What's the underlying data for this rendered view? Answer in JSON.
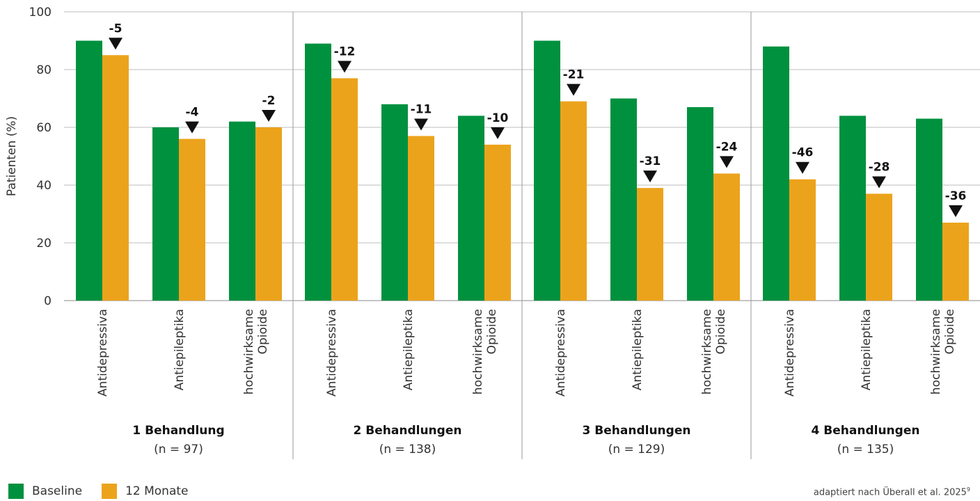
{
  "chart_data": {
    "type": "bar",
    "ylabel": "Patienten (%)",
    "ylim": [
      0,
      100
    ],
    "yticks": [
      0,
      20,
      40,
      60,
      80,
      100
    ],
    "grid": true,
    "colors": {
      "baseline": "#00913f",
      "month12": "#eca31c"
    },
    "series": [
      {
        "name": "Baseline",
        "color": "#00913f"
      },
      {
        "name": "12 Monate",
        "color": "#eca31c"
      }
    ],
    "groups": [
      {
        "title": "1 Behandlung",
        "n": "(n = 97)",
        "categories": [
          {
            "label": [
              "Antidepressiva"
            ],
            "baseline": 90,
            "month12": 85,
            "change": "-5"
          },
          {
            "label": [
              "Antiepileptika"
            ],
            "baseline": 60,
            "month12": 56,
            "change": "-4"
          },
          {
            "label": [
              "hochwirksame",
              "Opioide"
            ],
            "baseline": 62,
            "month12": 60,
            "change": "-2"
          }
        ]
      },
      {
        "title": "2 Behandlungen",
        "n": "(n = 138)",
        "categories": [
          {
            "label": [
              "Antidepressiva"
            ],
            "baseline": 89,
            "month12": 77,
            "change": "-12"
          },
          {
            "label": [
              "Antiepileptika"
            ],
            "baseline": 68,
            "month12": 57,
            "change": "-11"
          },
          {
            "label": [
              "hochwirksame",
              "Opioide"
            ],
            "baseline": 64,
            "month12": 54,
            "change": "-10"
          }
        ]
      },
      {
        "title": "3 Behandlungen",
        "n": "(n = 129)",
        "categories": [
          {
            "label": [
              "Antidepressiva"
            ],
            "baseline": 90,
            "month12": 69,
            "change": "-21"
          },
          {
            "label": [
              "Antiepileptika"
            ],
            "baseline": 70,
            "month12": 39,
            "change": "-31"
          },
          {
            "label": [
              "hochwirksame",
              "Opioide"
            ],
            "baseline": 67,
            "month12": 44,
            "change": "-24"
          }
        ]
      },
      {
        "title": "4 Behandlungen",
        "n": "(n = 135)",
        "categories": [
          {
            "label": [
              "Antidepressiva"
            ],
            "baseline": 88,
            "month12": 42,
            "change": "-46"
          },
          {
            "label": [
              "Antiepileptika"
            ],
            "baseline": 64,
            "month12": 37,
            "change": "-28"
          },
          {
            "label": [
              "hochwirksame",
              "Opioide"
            ],
            "baseline": 63,
            "month12": 27,
            "change": "-36"
          }
        ]
      }
    ]
  },
  "legend": {
    "baseline": "Baseline",
    "month12": "12 Monate"
  },
  "source": {
    "text": "adaptiert nach Überall et al. 2025",
    "sup": "9"
  }
}
